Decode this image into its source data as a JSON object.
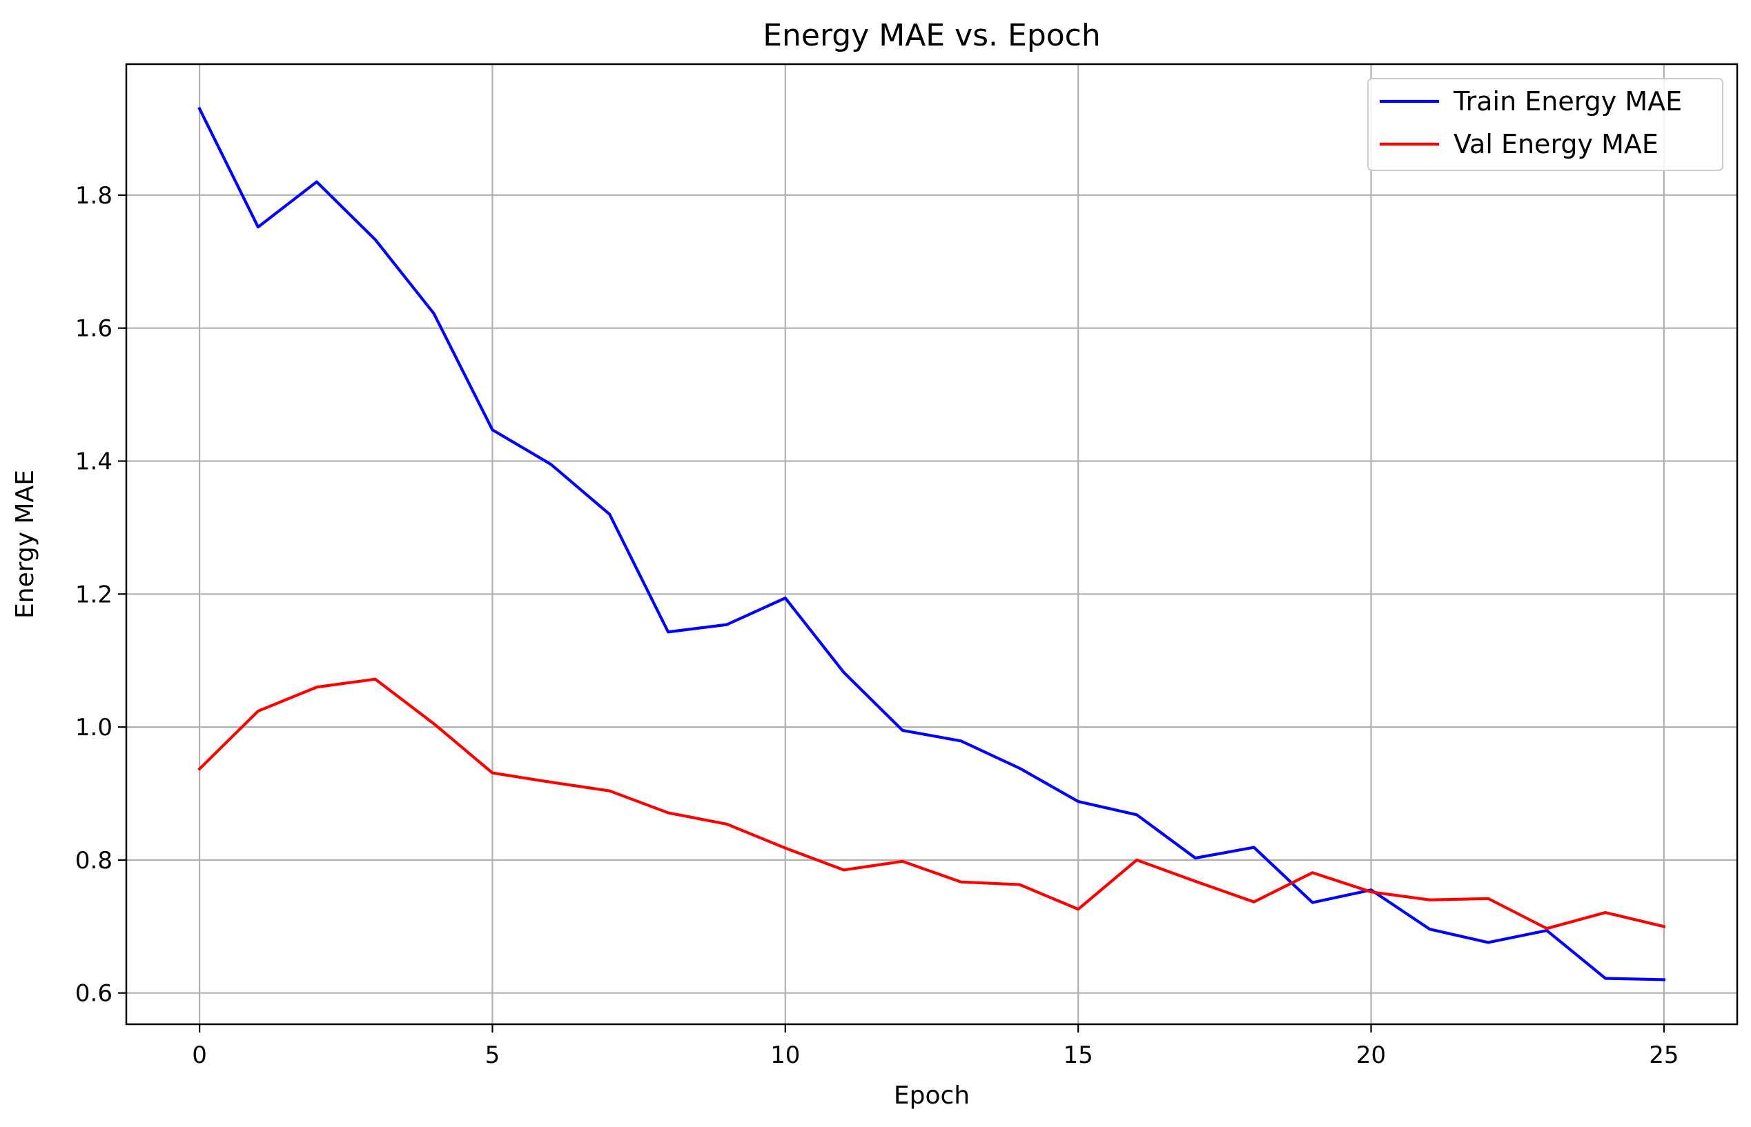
{
  "chart_data": {
    "type": "line",
    "title": "Energy MAE vs. Epoch",
    "xlabel": "Epoch",
    "ylabel": "Energy MAE",
    "x": [
      0,
      1,
      2,
      3,
      4,
      5,
      6,
      7,
      8,
      9,
      10,
      11,
      12,
      13,
      14,
      15,
      16,
      17,
      18,
      19,
      20,
      21,
      22,
      23,
      24,
      25
    ],
    "series": [
      {
        "name": "Train Energy MAE",
        "color": "#0000ff",
        "values": [
          1.93,
          1.752,
          1.82,
          1.733,
          1.622,
          1.447,
          1.395,
          1.32,
          1.143,
          1.154,
          1.194,
          1.082,
          0.995,
          0.979,
          0.938,
          0.888,
          0.868,
          0.803,
          0.819,
          0.736,
          0.755,
          0.696,
          0.676,
          0.694,
          0.622,
          0.62
        ]
      },
      {
        "name": "Val Energy MAE",
        "color": "#ff0000",
        "values": [
          0.937,
          1.024,
          1.06,
          1.072,
          1.005,
          0.931,
          0.917,
          0.904,
          0.871,
          0.854,
          0.818,
          0.785,
          0.798,
          0.767,
          0.763,
          0.726,
          0.8,
          0.768,
          0.737,
          0.781,
          0.752,
          0.74,
          0.742,
          0.697,
          0.721,
          0.7
        ]
      }
    ],
    "xlim": [
      -1.25,
      26.25
    ],
    "ylim": [
      0.553,
      1.997
    ],
    "xticks": [
      0,
      5,
      10,
      15,
      20,
      25
    ],
    "xtick_labels": [
      "0",
      "5",
      "10",
      "15",
      "20",
      "25"
    ],
    "yticks": [
      0.6,
      0.8,
      1.0,
      1.2,
      1.4,
      1.6,
      1.8
    ],
    "ytick_labels": [
      "0.6",
      "0.8",
      "1.0",
      "1.2",
      "1.4",
      "1.6",
      "1.8"
    ],
    "grid": true,
    "legend_position": "top-right"
  }
}
